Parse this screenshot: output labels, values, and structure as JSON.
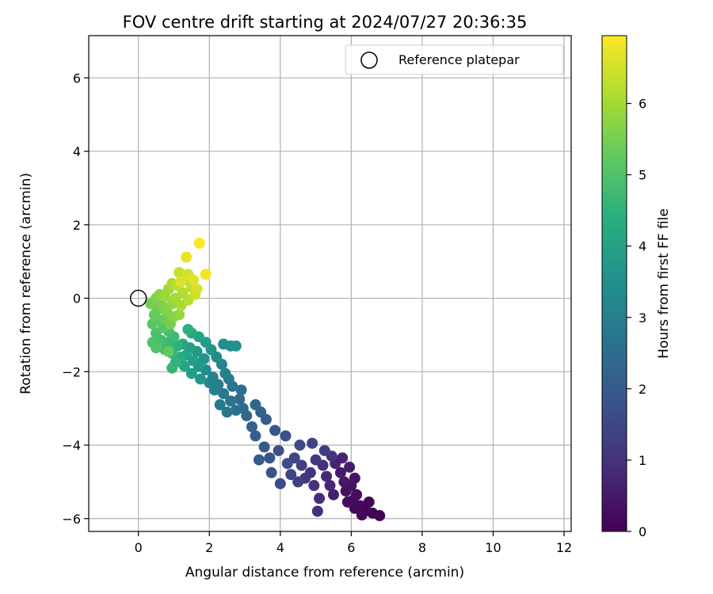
{
  "chart_data": {
    "type": "scatter",
    "title": "FOV centre drift starting at 2024/07/27 20:36:35",
    "xlabel": "Angular distance from reference (arcmin)",
    "ylabel": "Rotation from reference (arcmin)",
    "xlim": [
      -1.4,
      12.2
    ],
    "ylim": [
      -6.35,
      7.15
    ],
    "xticks": [
      0,
      2,
      4,
      6,
      8,
      10,
      12
    ],
    "yticks": [
      -6,
      -4,
      -2,
      0,
      2,
      4,
      6
    ],
    "grid": true,
    "legend": {
      "position": "top-right",
      "entries": [
        "Reference platepar"
      ]
    },
    "colorbar": {
      "label": "Hours from first FF file",
      "range": [
        0,
        6.95
      ],
      "ticks": [
        0,
        1,
        2,
        3,
        4,
        5,
        6
      ],
      "colormap": "viridis"
    },
    "reference_point": {
      "x": 0,
      "y": 0,
      "label": "Reference platepar"
    },
    "series": [
      {
        "note_colour_is_hours": true,
        "points": [
          {
            "x": 6.8,
            "y": -5.92,
            "c": 0.02
          },
          {
            "x": 6.6,
            "y": -5.85,
            "c": 0.05
          },
          {
            "x": 6.4,
            "y": -5.78,
            "c": 0.08
          },
          {
            "x": 6.5,
            "y": -5.55,
            "c": 0.1
          },
          {
            "x": 6.3,
            "y": -5.9,
            "c": 0.12
          },
          {
            "x": 6.25,
            "y": -5.65,
            "c": 0.15
          },
          {
            "x": 6.1,
            "y": -5.72,
            "c": 0.18
          },
          {
            "x": 6.05,
            "y": -5.5,
            "c": 0.2
          },
          {
            "x": 5.9,
            "y": -5.55,
            "c": 0.22
          },
          {
            "x": 6.15,
            "y": -5.35,
            "c": 0.25
          },
          {
            "x": 5.85,
            "y": -5.25,
            "c": 0.3
          },
          {
            "x": 6.0,
            "y": -5.1,
            "c": 0.35
          },
          {
            "x": 6.1,
            "y": -4.9,
            "c": 0.4
          },
          {
            "x": 5.8,
            "y": -5.0,
            "c": 0.45
          },
          {
            "x": 5.7,
            "y": -4.75,
            "c": 0.5
          },
          {
            "x": 5.95,
            "y": -4.6,
            "c": 0.55
          },
          {
            "x": 5.5,
            "y": -5.35,
            "c": 0.6
          },
          {
            "x": 5.55,
            "y": -4.5,
            "c": 0.65
          },
          {
            "x": 5.75,
            "y": -4.35,
            "c": 0.7
          },
          {
            "x": 5.4,
            "y": -5.1,
            "c": 0.75
          },
          {
            "x": 5.3,
            "y": -4.85,
            "c": 0.8
          },
          {
            "x": 5.1,
            "y": -5.45,
            "c": 0.85
          },
          {
            "x": 5.05,
            "y": -5.8,
            "c": 0.9
          },
          {
            "x": 5.2,
            "y": -4.55,
            "c": 0.95
          },
          {
            "x": 4.95,
            "y": -5.1,
            "c": 1.0
          },
          {
            "x": 5.45,
            "y": -4.3,
            "c": 1.05
          },
          {
            "x": 4.85,
            "y": -4.75,
            "c": 1.1
          },
          {
            "x": 5.0,
            "y": -4.4,
            "c": 1.15
          },
          {
            "x": 4.7,
            "y": -4.9,
            "c": 1.2
          },
          {
            "x": 5.25,
            "y": -4.15,
            "c": 1.25
          },
          {
            "x": 4.6,
            "y": -4.55,
            "c": 1.3
          },
          {
            "x": 4.5,
            "y": -5.0,
            "c": 1.35
          },
          {
            "x": 4.9,
            "y": -3.95,
            "c": 1.4
          },
          {
            "x": 4.4,
            "y": -4.35,
            "c": 1.45
          },
          {
            "x": 4.3,
            "y": -4.8,
            "c": 1.5
          },
          {
            "x": 4.55,
            "y": -4.0,
            "c": 1.55
          },
          {
            "x": 4.0,
            "y": -5.05,
            "c": 1.6
          },
          {
            "x": 4.2,
            "y": -4.5,
            "c": 1.65
          },
          {
            "x": 3.95,
            "y": -4.15,
            "c": 1.7
          },
          {
            "x": 4.15,
            "y": -3.75,
            "c": 1.75
          },
          {
            "x": 3.75,
            "y": -4.75,
            "c": 1.8
          },
          {
            "x": 3.7,
            "y": -4.35,
            "c": 1.85
          },
          {
            "x": 3.85,
            "y": -3.6,
            "c": 1.9
          },
          {
            "x": 3.55,
            "y": -4.05,
            "c": 1.95
          },
          {
            "x": 3.4,
            "y": -4.4,
            "c": 2.0
          },
          {
            "x": 3.6,
            "y": -3.3,
            "c": 2.05
          },
          {
            "x": 3.3,
            "y": -3.75,
            "c": 2.1
          },
          {
            "x": 3.45,
            "y": -3.1,
            "c": 2.15
          },
          {
            "x": 3.2,
            "y": -3.5,
            "c": 2.2
          },
          {
            "x": 3.05,
            "y": -3.2,
            "c": 2.3
          },
          {
            "x": 3.3,
            "y": -2.9,
            "c": 2.35
          },
          {
            "x": 2.95,
            "y": -3.0,
            "c": 2.4
          },
          {
            "x": 2.85,
            "y": -2.75,
            "c": 2.5
          },
          {
            "x": 2.75,
            "y": -3.05,
            "c": 2.55
          },
          {
            "x": 2.9,
            "y": -2.5,
            "c": 2.6
          },
          {
            "x": 2.6,
            "y": -2.8,
            "c": 2.65
          },
          {
            "x": 2.5,
            "y": -3.1,
            "c": 2.7
          },
          {
            "x": 2.65,
            "y": -2.4,
            "c": 2.75
          },
          {
            "x": 2.4,
            "y": -2.6,
            "c": 2.8
          },
          {
            "x": 2.55,
            "y": -2.2,
            "c": 2.85
          },
          {
            "x": 2.3,
            "y": -2.9,
            "c": 2.9
          },
          {
            "x": 2.25,
            "y": -2.35,
            "c": 2.95
          },
          {
            "x": 2.45,
            "y": -2.05,
            "c": 3.0
          },
          {
            "x": 2.15,
            "y": -2.5,
            "c": 3.05
          },
          {
            "x": 2.1,
            "y": -2.15,
            "c": 3.1
          },
          {
            "x": 2.35,
            "y": -1.8,
            "c": 3.15
          },
          {
            "x": 2.0,
            "y": -2.3,
            "c": 3.2
          },
          {
            "x": 2.2,
            "y": -1.6,
            "c": 3.3
          },
          {
            "x": 1.9,
            "y": -1.95,
            "c": 3.35
          },
          {
            "x": 2.6,
            "y": -1.3,
            "c": 3.4
          },
          {
            "x": 2.4,
            "y": -1.25,
            "c": 3.45
          },
          {
            "x": 2.75,
            "y": -1.3,
            "c": 3.5
          },
          {
            "x": 1.85,
            "y": -1.65,
            "c": 3.55
          },
          {
            "x": 2.05,
            "y": -1.4,
            "c": 3.6
          },
          {
            "x": 1.75,
            "y": -2.2,
            "c": 3.65
          },
          {
            "x": 1.7,
            "y": -1.85,
            "c": 3.7
          },
          {
            "x": 1.65,
            "y": -1.45,
            "c": 3.75
          },
          {
            "x": 1.9,
            "y": -1.2,
            "c": 3.8
          },
          {
            "x": 1.55,
            "y": -1.7,
            "c": 3.85
          },
          {
            "x": 1.5,
            "y": -2.05,
            "c": 3.9
          },
          {
            "x": 1.45,
            "y": -1.35,
            "c": 3.95
          },
          {
            "x": 1.7,
            "y": -1.05,
            "c": 4.0
          },
          {
            "x": 1.35,
            "y": -1.55,
            "c": 4.05
          },
          {
            "x": 1.25,
            "y": -1.25,
            "c": 4.1
          },
          {
            "x": 1.3,
            "y": -1.85,
            "c": 4.15
          },
          {
            "x": 1.5,
            "y": -0.95,
            "c": 4.2
          },
          {
            "x": 1.2,
            "y": -1.6,
            "c": 4.3
          },
          {
            "x": 1.4,
            "y": -0.85,
            "c": 4.4
          },
          {
            "x": 1.1,
            "y": -1.3,
            "c": 4.45
          },
          {
            "x": 1.05,
            "y": -1.75,
            "c": 4.5
          },
          {
            "x": 0.95,
            "y": -1.5,
            "c": 4.55
          },
          {
            "x": 0.95,
            "y": -1.9,
            "c": 4.6
          },
          {
            "x": 0.85,
            "y": -1.2,
            "c": 4.65
          },
          {
            "x": 1.0,
            "y": -1.05,
            "c": 4.7
          },
          {
            "x": 0.75,
            "y": -1.4,
            "c": 4.75
          },
          {
            "x": 0.65,
            "y": -1.15,
            "c": 4.8
          },
          {
            "x": 0.85,
            "y": -0.9,
            "c": 4.85
          },
          {
            "x": 0.55,
            "y": -1.3,
            "c": 4.9
          },
          {
            "x": 0.5,
            "y": -0.95,
            "c": 4.95
          },
          {
            "x": 0.4,
            "y": -1.2,
            "c": 5.0
          },
          {
            "x": 0.5,
            "y": -1.35,
            "c": 5.05
          },
          {
            "x": 0.7,
            "y": -0.8,
            "c": 5.1
          },
          {
            "x": 0.4,
            "y": -0.7,
            "c": 5.15
          },
          {
            "x": 0.6,
            "y": -0.6,
            "c": 5.2
          },
          {
            "x": 0.85,
            "y": -1.45,
            "c": 5.25
          },
          {
            "x": 0.45,
            "y": -0.45,
            "c": 5.3
          },
          {
            "x": 0.55,
            "y": -0.3,
            "c": 5.35
          },
          {
            "x": 0.75,
            "y": -0.55,
            "c": 5.4
          },
          {
            "x": 0.35,
            "y": -0.15,
            "c": 5.45
          },
          {
            "x": 0.9,
            "y": -0.7,
            "c": 5.5
          },
          {
            "x": 0.5,
            "y": 0.0,
            "c": 5.55
          },
          {
            "x": 0.65,
            "y": -0.2,
            "c": 5.6
          },
          {
            "x": 0.8,
            "y": -0.35,
            "c": 5.65
          },
          {
            "x": 1.0,
            "y": -0.5,
            "c": 5.7
          },
          {
            "x": 0.6,
            "y": 0.1,
            "c": 5.75
          },
          {
            "x": 0.95,
            "y": -0.15,
            "c": 5.8
          },
          {
            "x": 1.15,
            "y": -0.45,
            "c": 5.85
          },
          {
            "x": 0.75,
            "y": 0.05,
            "c": 5.9
          },
          {
            "x": 0.85,
            "y": 0.25,
            "c": 5.95
          },
          {
            "x": 1.05,
            "y": 0.0,
            "c": 6.0
          },
          {
            "x": 1.2,
            "y": -0.2,
            "c": 6.05
          },
          {
            "x": 0.95,
            "y": 0.4,
            "c": 6.1
          },
          {
            "x": 1.25,
            "y": 0.15,
            "c": 6.15
          },
          {
            "x": 1.4,
            "y": -0.05,
            "c": 6.2
          },
          {
            "x": 1.1,
            "y": 0.35,
            "c": 6.25
          },
          {
            "x": 1.5,
            "y": 0.3,
            "c": 6.3
          },
          {
            "x": 1.3,
            "y": 0.5,
            "c": 6.35
          },
          {
            "x": 1.15,
            "y": 0.7,
            "c": 6.4
          },
          {
            "x": 1.6,
            "y": 0.1,
            "c": 6.45
          },
          {
            "x": 1.4,
            "y": 0.65,
            "c": 6.5
          },
          {
            "x": 1.65,
            "y": 0.25,
            "c": 6.55
          },
          {
            "x": 1.2,
            "y": 0.45,
            "c": 6.6
          },
          {
            "x": 1.55,
            "y": 0.5,
            "c": 6.65
          },
          {
            "x": 1.35,
            "y": 1.12,
            "c": 6.75
          },
          {
            "x": 1.9,
            "y": 0.65,
            "c": 6.85
          },
          {
            "x": 1.72,
            "y": 1.5,
            "c": 6.92
          }
        ]
      }
    ]
  }
}
